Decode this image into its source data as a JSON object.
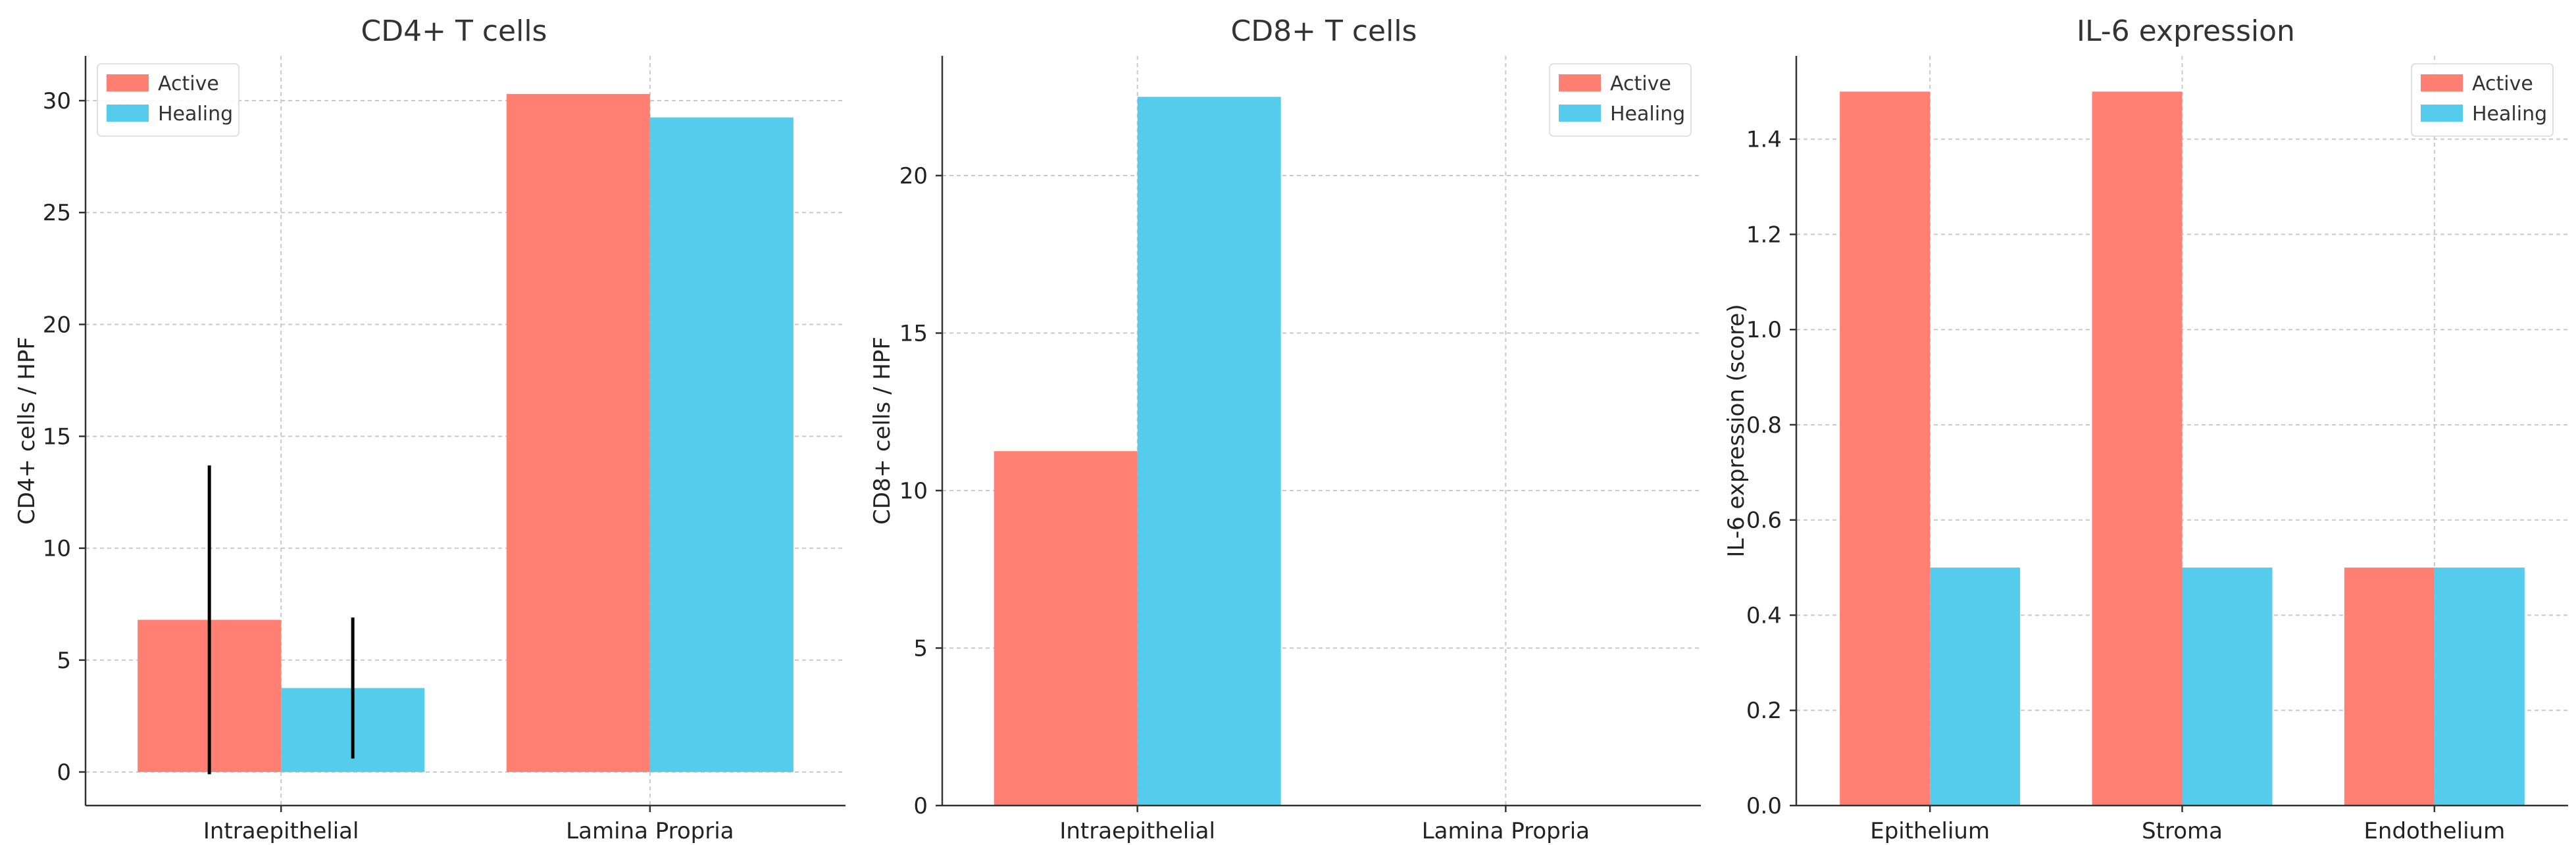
{
  "chart_data": [
    {
      "type": "bar",
      "title": "CD4+ T cells",
      "xlabel": "",
      "ylabel": "CD4+ cells / HPF",
      "categories": [
        "Intraepithelial",
        "Lamina Propria"
      ],
      "ylim": [
        -1.5,
        32
      ],
      "yticks": [
        0,
        5,
        10,
        15,
        20,
        25,
        30
      ],
      "series": [
        {
          "name": "Active",
          "color": "#FF8072",
          "values": [
            6.8,
            30.3
          ],
          "errors": [
            6.9,
            null
          ]
        },
        {
          "name": "Healing",
          "color": "#56CCEC",
          "values": [
            3.75,
            29.25
          ],
          "errors": [
            3.15,
            null
          ]
        }
      ],
      "legend_position": "top-left"
    },
    {
      "type": "bar",
      "title": "CD8+ T cells",
      "xlabel": "",
      "ylabel": "CD8+ cells / HPF",
      "categories": [
        "Intraepithelial",
        "Lamina Propria"
      ],
      "ylim": [
        0,
        23.8
      ],
      "yticks": [
        0,
        5,
        10,
        15,
        20
      ],
      "series": [
        {
          "name": "Active",
          "color": "#FF8072",
          "values": [
            11.25,
            null
          ],
          "errors": [
            null,
            null
          ]
        },
        {
          "name": "Healing",
          "color": "#56CCEC",
          "values": [
            22.5,
            null
          ],
          "errors": [
            null,
            null
          ]
        }
      ],
      "legend_position": "top-right"
    },
    {
      "type": "bar",
      "title": "IL-6 expression",
      "xlabel": "",
      "ylabel": "IL-6 expression (score)",
      "categories": [
        "Epithelium",
        "Stroma",
        "Endothelium"
      ],
      "ylim": [
        0,
        1.575
      ],
      "yticks": [
        0.0,
        0.2,
        0.4,
        0.6,
        0.8,
        1.0,
        1.2,
        1.4
      ],
      "series": [
        {
          "name": "Active",
          "color": "#FF8072",
          "values": [
            1.5,
            1.5,
            0.5
          ],
          "errors": [
            null,
            null,
            null
          ]
        },
        {
          "name": "Healing",
          "color": "#56CCEC",
          "values": [
            0.5,
            0.5,
            0.5
          ],
          "errors": [
            null,
            null,
            null
          ]
        }
      ],
      "legend_position": "top-right"
    }
  ]
}
